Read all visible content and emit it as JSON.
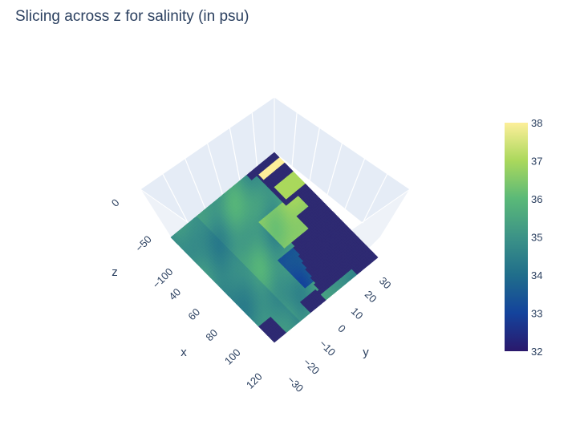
{
  "chart_data": {
    "type": "heatmap",
    "title": "Slicing across z for salinity (in psu)",
    "render": "3d-surface-slice",
    "axes": {
      "x": {
        "title": "x",
        "ticks": [
          "40",
          "60",
          "80",
          "100",
          "120"
        ],
        "range": [
          30,
          120
        ]
      },
      "y": {
        "title": "y",
        "ticks": [
          "−30",
          "−20",
          "−10",
          "0",
          "10",
          "20",
          "30"
        ],
        "range": [
          -30,
          35
        ]
      },
      "z": {
        "title": "z",
        "ticks": [
          "0",
          "−50",
          "−100"
        ],
        "range": [
          -110,
          0
        ]
      }
    },
    "slice_z": -110,
    "colorscale": "haline",
    "colorbar": {
      "min": 32,
      "max": 38,
      "ticks": [
        "32",
        "33",
        "34",
        "35",
        "36",
        "37",
        "38"
      ],
      "colors": [
        "#2a186c",
        "#14439c",
        "#206e8b",
        "#3c9387",
        "#5ab978",
        "#aad85c",
        "#fdef9a"
      ]
    },
    "background_color": "#e5ecf6",
    "land_color": "#2e2a72",
    "salinity_pattern": {
      "ocean_typical": 35.2,
      "red_sea": 38,
      "persian_gulf": 37,
      "arabian_sea_north": 36.6,
      "bay_of_bengal": 33.4,
      "southern_region": 34.8
    }
  }
}
